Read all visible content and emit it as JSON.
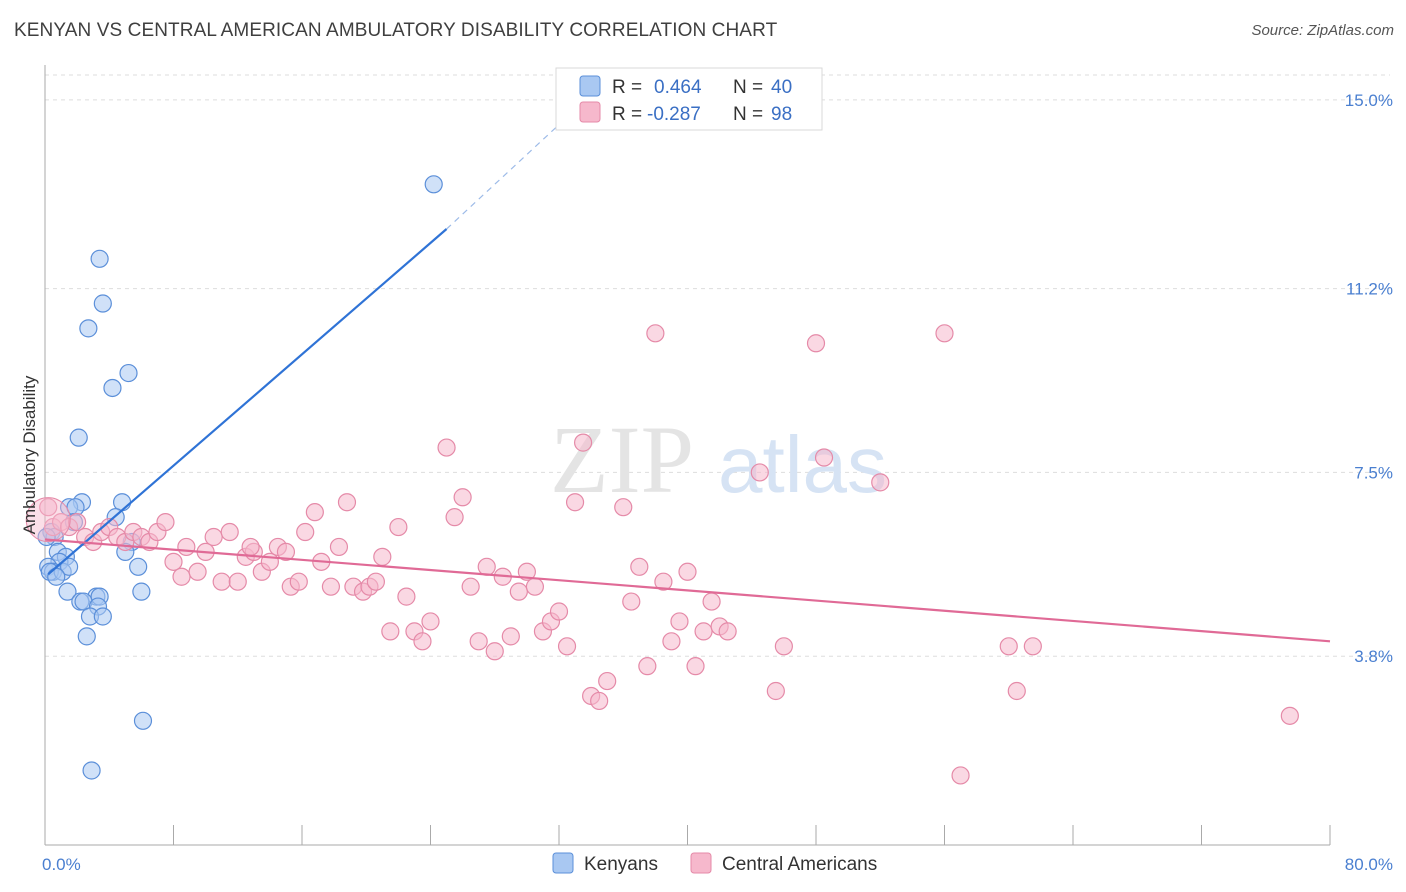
{
  "title": "KENYAN VS CENTRAL AMERICAN AMBULATORY DISABILITY CORRELATION CHART",
  "source": "Source: ZipAtlas.com",
  "watermark": {
    "zip": "ZIP",
    "atlas": "atlas"
  },
  "colors": {
    "kenyans_fill": "#a9c8f2",
    "kenyans_stroke": "#5b8fd9",
    "kenyans_line": "#2f73d6",
    "central_fill": "#f6b8cc",
    "central_stroke": "#e58aa8",
    "central_line": "#e06a96",
    "tick_label": "#4a7fd0",
    "grid": "#dddddd"
  },
  "legend": {
    "rows": [
      {
        "r_label": "R =",
        "r_value": "0.464",
        "n_label": "N =",
        "n_value": "40"
      },
      {
        "r_label": "R =",
        "r_value": "-0.287",
        "n_label": "N =",
        "n_value": "98"
      }
    ]
  },
  "chart_data": {
    "type": "scatter",
    "ylabel": "Ambulatory Disability",
    "xlim": [
      0,
      80
    ],
    "ylim": [
      0,
      15.5
    ],
    "x_tick_labels": [
      {
        "value": 0,
        "label": "0.0%"
      },
      {
        "value": 80,
        "label": "80.0%"
      }
    ],
    "y_tick_labels": [
      {
        "value": 3.8,
        "label": "3.8%"
      },
      {
        "value": 7.5,
        "label": "7.5%"
      },
      {
        "value": 11.2,
        "label": "11.2%"
      },
      {
        "value": 15.0,
        "label": "15.0%"
      }
    ],
    "grid": true,
    "legend_position": "top-center",
    "series": [
      {
        "name": "Kenyans",
        "r": 0.464,
        "n": 40,
        "trend": {
          "x0": 0.2,
          "y0": 5.45,
          "x1": 25,
          "y1": 12.4,
          "dash_to_x": 32,
          "dash_to_y": 14.5
        },
        "points": [
          [
            24.2,
            13.3
          ],
          [
            3.4,
            11.8
          ],
          [
            3.6,
            10.9
          ],
          [
            2.7,
            10.4
          ],
          [
            5.2,
            9.5
          ],
          [
            4.2,
            9.2
          ],
          [
            2.1,
            8.2
          ],
          [
            2.3,
            6.9
          ],
          [
            4.8,
            6.9
          ],
          [
            1.5,
            6.8
          ],
          [
            1.9,
            6.8
          ],
          [
            1.8,
            6.5
          ],
          [
            4.4,
            6.6
          ],
          [
            0.4,
            6.3
          ],
          [
            0.6,
            6.2
          ],
          [
            5.4,
            6.1
          ],
          [
            0.8,
            5.9
          ],
          [
            5.0,
            5.9
          ],
          [
            1.3,
            5.8
          ],
          [
            0.9,
            5.7
          ],
          [
            0.2,
            5.6
          ],
          [
            0.5,
            5.5
          ],
          [
            0.3,
            5.5
          ],
          [
            1.1,
            5.5
          ],
          [
            1.5,
            5.6
          ],
          [
            5.8,
            5.6
          ],
          [
            1.4,
            5.1
          ],
          [
            3.2,
            5.0
          ],
          [
            3.4,
            5.0
          ],
          [
            2.2,
            4.9
          ],
          [
            2.4,
            4.9
          ],
          [
            3.3,
            4.8
          ],
          [
            6.0,
            5.1
          ],
          [
            2.8,
            4.6
          ],
          [
            3.6,
            4.6
          ],
          [
            2.6,
            4.2
          ],
          [
            6.1,
            2.5
          ],
          [
            2.9,
            1.5
          ],
          [
            0.1,
            6.2
          ],
          [
            0.7,
            5.4
          ]
        ]
      },
      {
        "name": "Central Americans",
        "r": -0.287,
        "n": 98,
        "trend": {
          "x0": 0,
          "y0": 6.15,
          "x1": 80,
          "y1": 4.1
        },
        "points": [
          [
            0.2,
            6.8
          ],
          [
            0.5,
            6.4
          ],
          [
            1.0,
            6.5
          ],
          [
            1.5,
            6.4
          ],
          [
            2.0,
            6.5
          ],
          [
            2.5,
            6.2
          ],
          [
            3.0,
            6.1
          ],
          [
            3.5,
            6.3
          ],
          [
            4.0,
            6.4
          ],
          [
            4.5,
            6.2
          ],
          [
            5.0,
            6.1
          ],
          [
            5.5,
            6.3
          ],
          [
            6.0,
            6.2
          ],
          [
            6.5,
            6.1
          ],
          [
            7.0,
            6.3
          ],
          [
            7.5,
            6.5
          ],
          [
            8.0,
            5.7
          ],
          [
            8.5,
            5.4
          ],
          [
            8.8,
            6.0
          ],
          [
            9.5,
            5.5
          ],
          [
            10.0,
            5.9
          ],
          [
            10.5,
            6.2
          ],
          [
            11.0,
            5.3
          ],
          [
            11.5,
            6.3
          ],
          [
            12.0,
            5.3
          ],
          [
            12.5,
            5.8
          ],
          [
            13.0,
            5.9
          ],
          [
            13.5,
            5.5
          ],
          [
            14.0,
            5.7
          ],
          [
            14.5,
            6.0
          ],
          [
            15.0,
            5.9
          ],
          [
            15.3,
            5.2
          ],
          [
            15.8,
            5.3
          ],
          [
            16.2,
            6.3
          ],
          [
            16.8,
            6.7
          ],
          [
            17.2,
            5.7
          ],
          [
            17.8,
            5.2
          ],
          [
            18.3,
            6.0
          ],
          [
            18.8,
            6.9
          ],
          [
            19.2,
            5.2
          ],
          [
            19.8,
            5.1
          ],
          [
            20.2,
            5.2
          ],
          [
            20.6,
            5.3
          ],
          [
            21.0,
            5.8
          ],
          [
            21.5,
            4.3
          ],
          [
            22.0,
            6.4
          ],
          [
            22.5,
            5.0
          ],
          [
            23.0,
            4.3
          ],
          [
            23.5,
            4.1
          ],
          [
            24.0,
            4.5
          ],
          [
            25.0,
            8.0
          ],
          [
            25.5,
            6.6
          ],
          [
            26.0,
            7.0
          ],
          [
            26.5,
            5.2
          ],
          [
            27.0,
            4.1
          ],
          [
            27.5,
            5.6
          ],
          [
            28.0,
            3.9
          ],
          [
            28.5,
            5.4
          ],
          [
            29.0,
            4.2
          ],
          [
            29.5,
            5.1
          ],
          [
            30.0,
            5.5
          ],
          [
            30.5,
            5.2
          ],
          [
            31.0,
            4.3
          ],
          [
            31.5,
            4.5
          ],
          [
            32.0,
            4.7
          ],
          [
            32.5,
            4.0
          ],
          [
            33.0,
            6.9
          ],
          [
            33.5,
            8.1
          ],
          [
            34.0,
            3.0
          ],
          [
            34.5,
            2.9
          ],
          [
            35.0,
            3.3
          ],
          [
            36.0,
            6.8
          ],
          [
            36.5,
            4.9
          ],
          [
            37.0,
            5.6
          ],
          [
            37.5,
            3.6
          ],
          [
            38.0,
            10.3
          ],
          [
            38.5,
            5.3
          ],
          [
            39.0,
            4.1
          ],
          [
            39.5,
            4.5
          ],
          [
            40.0,
            5.5
          ],
          [
            40.5,
            3.6
          ],
          [
            41.0,
            4.3
          ],
          [
            41.5,
            4.9
          ],
          [
            42.0,
            4.4
          ],
          [
            42.5,
            4.3
          ],
          [
            44.5,
            7.5
          ],
          [
            45.5,
            3.1
          ],
          [
            46.0,
            4.0
          ],
          [
            48.0,
            10.1
          ],
          [
            48.5,
            7.8
          ],
          [
            52.0,
            7.3
          ],
          [
            56.0,
            10.3
          ],
          [
            57.0,
            1.4
          ],
          [
            60.0,
            4.0
          ],
          [
            60.5,
            3.1
          ],
          [
            61.5,
            4.0
          ],
          [
            77.5,
            2.6
          ],
          [
            12.8,
            6.0
          ]
        ]
      }
    ]
  }
}
